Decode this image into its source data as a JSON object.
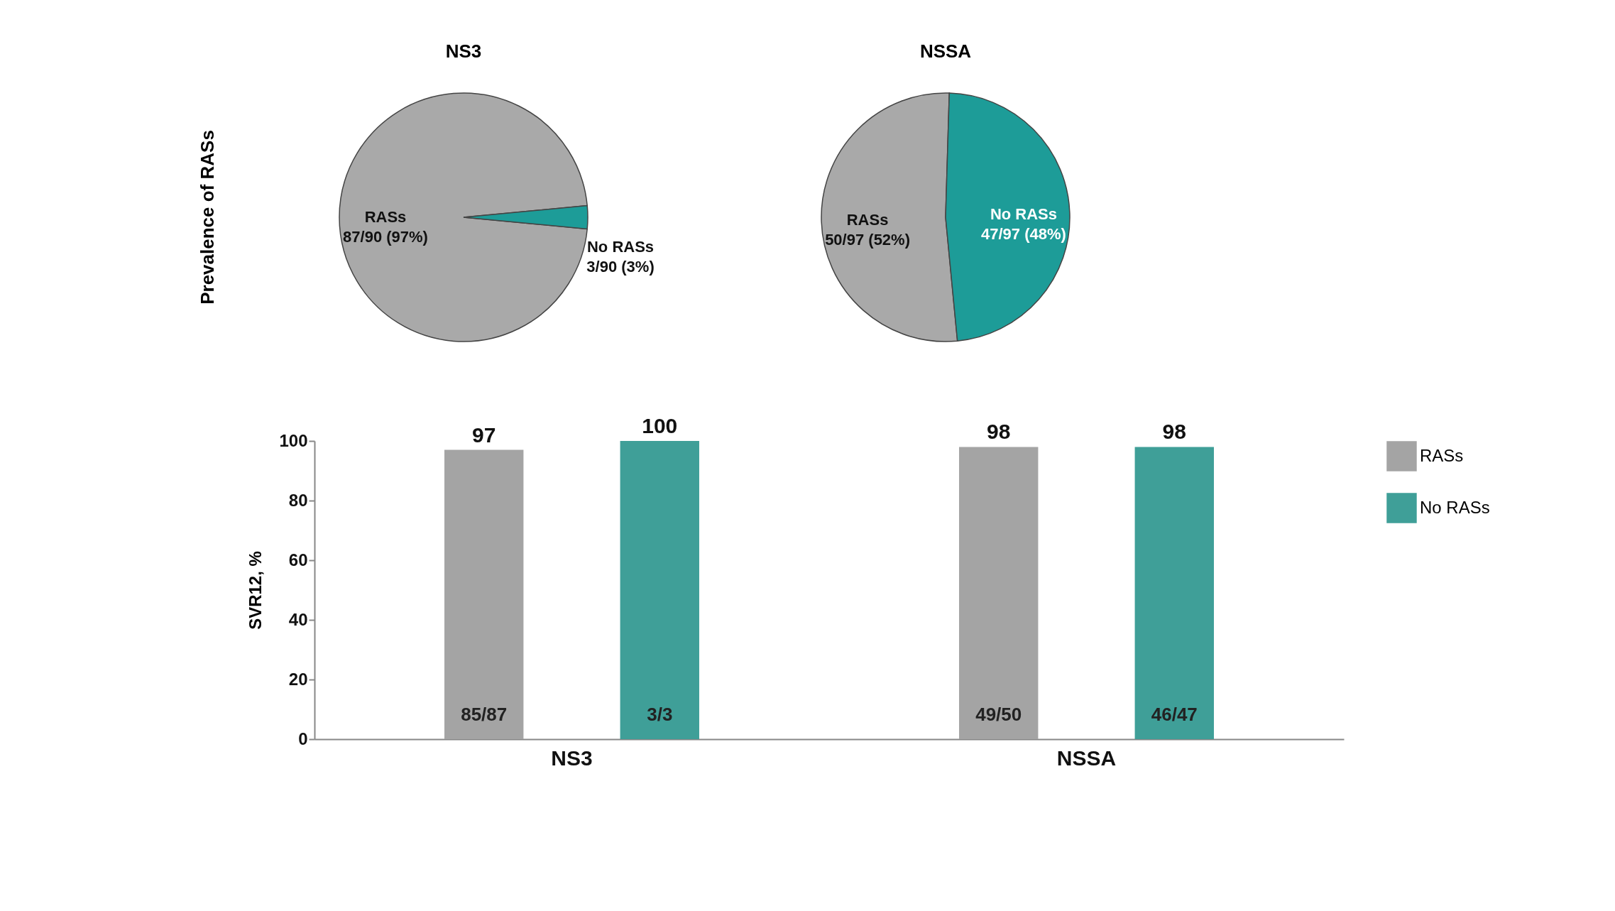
{
  "chart_data": [
    {
      "type": "pie",
      "title": "NS3",
      "ylabel": "Prevalence of RASs",
      "categories": [
        "RASs",
        "No RASs"
      ],
      "values": [
        97,
        3
      ],
      "colors": [
        "#a9a9a9",
        "#1d9c98"
      ],
      "value_labels": [
        "87/90 (97%)",
        "3/90 (3%)"
      ],
      "legend": false
    },
    {
      "type": "pie",
      "title": "NSSA",
      "categories": [
        "RASs",
        "No RASs"
      ],
      "values": [
        52,
        48
      ],
      "colors": [
        "#a9a9a9",
        "#1d9c98"
      ],
      "value_labels": [
        "50/97 (52%)",
        "47/97 (48%)"
      ],
      "legend": false
    },
    {
      "type": "bar",
      "ylabel": "SVR12, %",
      "categories": [
        "NS3",
        "NSSA"
      ],
      "series": [
        {
          "name": "RASs",
          "color": "#a4a4a4",
          "values": [
            97,
            98
          ]
        },
        {
          "name": "No RASs",
          "color": "#3f9f98",
          "values": [
            100,
            98
          ]
        }
      ],
      "ylim": [
        0,
        100
      ],
      "yticks": [
        0,
        20,
        40,
        60,
        80,
        100
      ],
      "data_labels": true,
      "legend": "right",
      "annotations": [
        "85/87",
        "49/50",
        "3/3",
        "46/47"
      ]
    }
  ]
}
